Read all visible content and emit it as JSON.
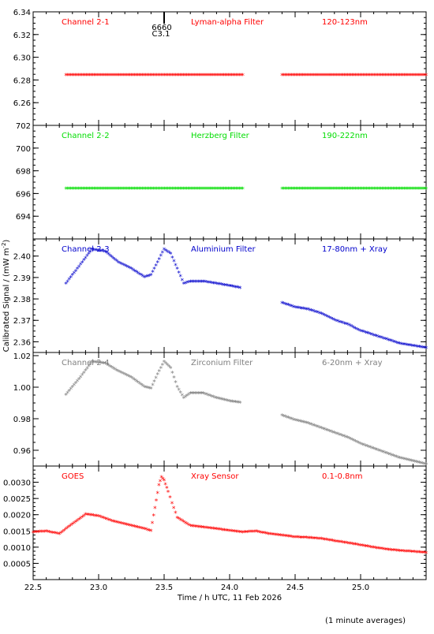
{
  "figure": {
    "xlabel": "Time / h UTC, 11 Feb 2026",
    "ylabel": "Calibrated Signal / (mW m",
    "ylabel_sup": "-2",
    "ylabel_close": ")",
    "footnote": "(1 minute averages)",
    "marker": {
      "label_top": "6660",
      "label_bottom": "C3.1",
      "x": 23.5
    }
  },
  "chart_data": [
    {
      "type": "scatter",
      "channel": "Channel 2-1",
      "filter": "Lyman-alpha Filter",
      "band": "120-123nm",
      "color": "#ff0000",
      "xlim": [
        22.5,
        25.5
      ],
      "ylim": [
        6.24,
        6.34
      ],
      "yticks": [
        6.26,
        6.28,
        6.3,
        6.32,
        6.34
      ],
      "ytick_labels": [
        "6.26",
        "6.28",
        "6.30",
        "6.32",
        "6.34"
      ],
      "segments": [
        {
          "x": [
            22.75,
            24.1
          ],
          "y": [
            6.284,
            6.284
          ]
        },
        {
          "x": [
            24.4,
            25.5
          ],
          "y": [
            6.284,
            6.284
          ]
        }
      ]
    },
    {
      "type": "scatter",
      "channel": "Channel 2-2",
      "filter": "Herzberg Filter",
      "band": "190-222nm",
      "color": "#00dd00",
      "xlim": [
        22.5,
        25.5
      ],
      "ylim": [
        692,
        702
      ],
      "yticks": [
        694,
        696,
        698,
        700,
        702
      ],
      "ytick_labels": [
        "694",
        "696",
        "698",
        "700",
        "702"
      ],
      "segments": [
        {
          "x": [
            22.75,
            24.1
          ],
          "y": [
            696.4,
            696.4
          ]
        },
        {
          "x": [
            24.4,
            25.5
          ],
          "y": [
            696.4,
            696.4
          ]
        }
      ]
    },
    {
      "type": "scatter",
      "channel": "Channel 2-3",
      "filter": "Aluminium Filter",
      "band": "17-80nm + Xray",
      "color": "#0000cc",
      "xlim": [
        22.5,
        25.5
      ],
      "ylim": [
        2.355,
        2.408
      ],
      "yticks": [
        2.36,
        2.37,
        2.38,
        2.39,
        2.4
      ],
      "ytick_labels": [
        "2.36",
        "2.37",
        "2.38",
        "2.39",
        "2.40"
      ],
      "segments": [
        {
          "x": [
            22.75,
            22.85,
            22.95,
            23.05,
            23.15,
            23.25,
            23.35,
            23.4,
            23.45,
            23.5,
            23.55,
            23.6,
            23.65,
            23.7,
            23.8,
            23.9,
            24.0,
            24.08
          ],
          "y": [
            2.387,
            2.395,
            2.403,
            2.402,
            2.397,
            2.394,
            2.39,
            2.391,
            2.397,
            2.403,
            2.401,
            2.394,
            2.387,
            2.388,
            2.388,
            2.387,
            2.386,
            2.385
          ]
        },
        {
          "x": [
            24.4,
            24.5,
            24.6,
            24.7,
            24.8,
            24.9,
            25.0,
            25.1,
            25.2,
            25.3,
            25.4,
            25.5
          ],
          "y": [
            2.378,
            2.376,
            2.375,
            2.373,
            2.37,
            2.368,
            2.365,
            2.363,
            2.361,
            2.359,
            2.358,
            2.357
          ]
        }
      ]
    },
    {
      "type": "scatter",
      "channel": "Channel 2-4",
      "filter": "Zirconium Filter",
      "band": "6-20nm + Xray",
      "color": "#808080",
      "xlim": [
        22.5,
        25.5
      ],
      "ylim": [
        0.95,
        1.022
      ],
      "yticks": [
        0.96,
        0.98,
        1.0,
        1.02
      ],
      "ytick_labels": [
        "0.96",
        "0.98",
        "1.00",
        "1.02"
      ],
      "segments": [
        {
          "x": [
            22.75,
            22.85,
            22.95,
            23.05,
            23.15,
            23.25,
            23.35,
            23.4,
            23.45,
            23.5,
            23.55,
            23.6,
            23.65,
            23.7,
            23.8,
            23.9,
            24.0,
            24.08
          ],
          "y": [
            0.995,
            1.005,
            1.016,
            1.015,
            1.01,
            1.006,
            1.0,
            0.999,
            1.008,
            1.016,
            1.012,
            1.0,
            0.993,
            0.996,
            0.996,
            0.993,
            0.991,
            0.99
          ]
        },
        {
          "x": [
            24.4,
            24.5,
            24.6,
            24.7,
            24.8,
            24.9,
            25.0,
            25.1,
            25.2,
            25.3,
            25.4,
            25.5
          ],
          "y": [
            0.982,
            0.979,
            0.977,
            0.974,
            0.971,
            0.968,
            0.964,
            0.961,
            0.958,
            0.955,
            0.953,
            0.951
          ]
        }
      ]
    },
    {
      "type": "scatter",
      "channel": "GOES",
      "filter": "Xray Sensor",
      "band": "0.1-0.8nm",
      "color": "#ff0000",
      "xlim": [
        22.5,
        25.5
      ],
      "ylim": [
        0.0,
        0.0035
      ],
      "yticks": [
        0.0005,
        0.001,
        0.0015,
        0.002,
        0.0025,
        0.003
      ],
      "ytick_labels": [
        "0.0005",
        "0.0010",
        "0.0015",
        "0.0020",
        "0.0025",
        "0.0030"
      ],
      "xticks": [
        22.5,
        23.0,
        23.5,
        24.0,
        24.5,
        25.0
      ],
      "xtick_labels": [
        "22.5",
        "23.0",
        "23.5",
        "24.0",
        "24.5",
        "25.0"
      ],
      "segments": [
        {
          "x": [
            22.5,
            22.6,
            22.7,
            22.8,
            22.9,
            23.0,
            23.1,
            23.2,
            23.3,
            23.4,
            23.43,
            23.46,
            23.48,
            23.5,
            23.53,
            23.56,
            23.6,
            23.7,
            23.8,
            23.9,
            24.0,
            24.1,
            24.2,
            24.3,
            24.4,
            24.5,
            24.6,
            24.7,
            24.8,
            24.9,
            25.0,
            25.1,
            25.2,
            25.3,
            25.4,
            25.5
          ],
          "y": [
            0.00145,
            0.00148,
            0.0014,
            0.0017,
            0.002,
            0.00195,
            0.0018,
            0.0017,
            0.0016,
            0.0015,
            0.0022,
            0.0029,
            0.00315,
            0.00305,
            0.0027,
            0.00235,
            0.0019,
            0.00165,
            0.0016,
            0.00155,
            0.0015,
            0.00145,
            0.00148,
            0.0014,
            0.00135,
            0.0013,
            0.00128,
            0.00125,
            0.00118,
            0.00112,
            0.00105,
            0.00098,
            0.00092,
            0.00088,
            0.00085,
            0.00082
          ]
        }
      ]
    }
  ]
}
